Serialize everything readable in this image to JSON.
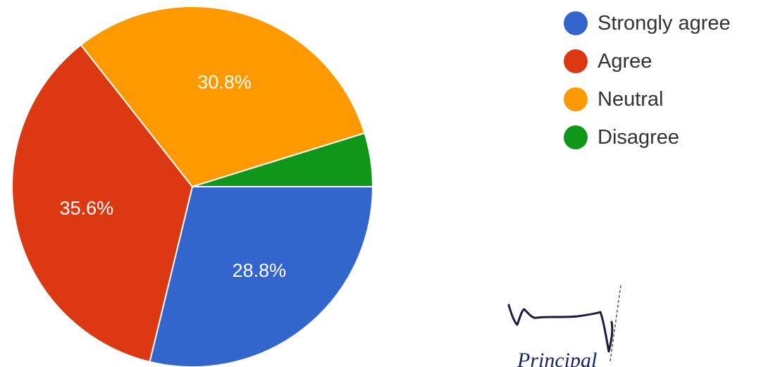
{
  "chart_data": {
    "type": "pie",
    "slices": [
      {
        "name": "Strongly agree",
        "value": 28.8,
        "label": "28.8%",
        "color": "#3366cc"
      },
      {
        "name": "Agree",
        "value": 35.6,
        "label": "35.6%",
        "color": "#dc3912"
      },
      {
        "name": "Neutral",
        "value": 30.8,
        "label": "30.8%",
        "color": "#ff9900"
      },
      {
        "name": "Disagree",
        "value": 4.8,
        "label": "",
        "color": "#109618"
      }
    ],
    "legend_position": "top-right"
  },
  "signature": {
    "caption": "Principal"
  }
}
